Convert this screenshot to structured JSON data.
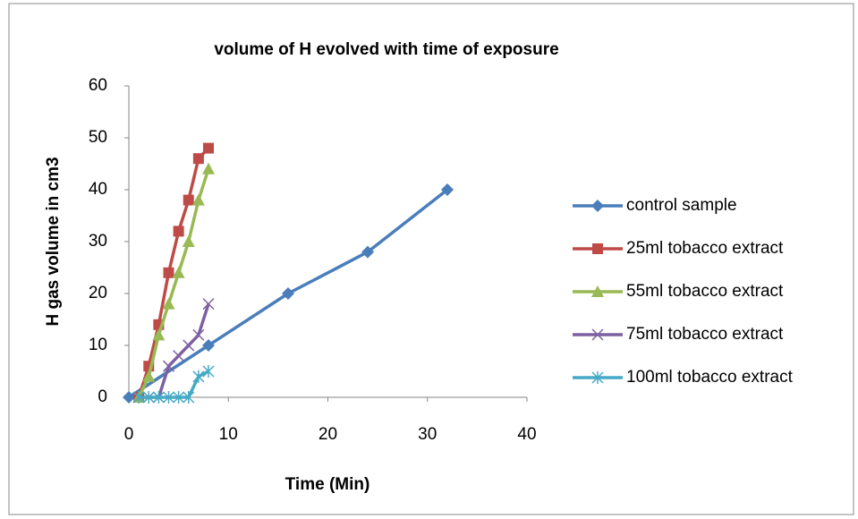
{
  "chart_data": {
    "type": "line",
    "title": "volume of H evolved with time of exposure",
    "x_label": "Time (Min)",
    "y_label": "H gas volume in cm3",
    "xlim": [
      0,
      40
    ],
    "xticks": [
      0,
      10,
      20,
      30,
      40
    ],
    "ylim": [
      0,
      60
    ],
    "yticks": [
      0,
      10,
      20,
      30,
      40,
      50,
      60
    ],
    "grid": false,
    "legend": "right",
    "series": [
      {
        "name": "control sample",
        "color": "#4a7ebb",
        "marker": "diamond",
        "x": [
          0,
          8,
          16,
          24,
          32
        ],
        "values": [
          0,
          10,
          20,
          28,
          40
        ]
      },
      {
        "name": "25ml tobacco extract",
        "color": "#be4b48",
        "marker": "square",
        "x": [
          1,
          2,
          3,
          4,
          5,
          6,
          7,
          8
        ],
        "values": [
          0,
          6,
          14,
          24,
          32,
          38,
          46,
          48
        ]
      },
      {
        "name": "55ml tobacco extract",
        "color": "#98b954",
        "marker": "triangle",
        "x": [
          1,
          2,
          3,
          4,
          5,
          6,
          7,
          8
        ],
        "values": [
          0,
          4,
          12,
          18,
          24,
          30,
          38,
          44
        ]
      },
      {
        "name": "75ml tobacco extract",
        "color": "#7d60a0",
        "marker": "x",
        "x": [
          1,
          2,
          3,
          4,
          5,
          6,
          7,
          8
        ],
        "values": [
          0,
          0,
          0,
          6,
          8,
          10,
          12,
          18
        ]
      },
      {
        "name": "100ml tobacco extract",
        "color": "#46aac5",
        "marker": "star",
        "x": [
          1,
          2,
          3,
          4,
          5,
          6,
          7,
          8
        ],
        "values": [
          0,
          0,
          0,
          0,
          0,
          0,
          4,
          5
        ]
      }
    ]
  }
}
